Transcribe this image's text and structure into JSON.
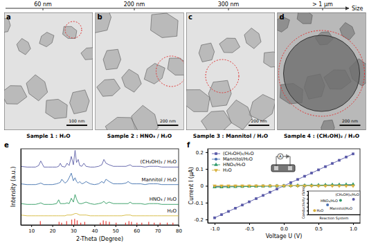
{
  "size_scale": {
    "labels": [
      "60 nm",
      "200 nm",
      "300 nm",
      "> 1 μm"
    ],
    "title": "Size"
  },
  "images": [
    {
      "letter": "a",
      "caption": "Sample 1 : H₂O",
      "scale_bar": "100 nm"
    },
    {
      "letter": "b",
      "caption": "Sample 2 : HNO₃ / H₂O",
      "scale_bar": "200 nm"
    },
    {
      "letter": "c",
      "caption": "Sample 3 : Mannitol / H₂O",
      "scale_bar": "200 nm"
    },
    {
      "letter": "d",
      "caption": "Sample 4 : (CH₂OH)₂ / H₂O",
      "scale_bar": "200 nm"
    }
  ],
  "chart_data": [
    {
      "type": "line",
      "panel_label": "e",
      "x_label": "2-Theta (Degree)",
      "y_label": "Intensity (a.u.)",
      "xlim": [
        5,
        80
      ],
      "xticks": [
        10,
        20,
        30,
        40,
        50,
        60,
        70,
        80
      ],
      "ylim": [
        0,
        100
      ],
      "tick_labels": "x",
      "x": [
        5,
        8,
        10,
        12,
        13.5,
        14.5,
        16,
        18,
        20,
        22,
        23,
        23.8,
        24.5,
        26,
        27,
        28,
        29,
        30,
        30.8,
        31.5,
        32.3,
        33,
        34,
        35,
        36,
        38,
        40,
        42,
        43.5,
        44.5,
        45.5,
        47,
        49,
        51,
        53,
        55,
        56,
        57,
        58,
        60,
        62,
        64,
        66,
        68,
        70,
        72,
        75,
        78,
        80
      ],
      "series": [
        {
          "name": "(CH₂OH)₂ / H₂O",
          "color": "#5b5ea6",
          "values": [
            77,
            76,
            76,
            76,
            78,
            84,
            76,
            76,
            76,
            76,
            77,
            81,
            77,
            76,
            81,
            78,
            90,
            79,
            98,
            82,
            86,
            78,
            77,
            81,
            77,
            76,
            76,
            77,
            79,
            86,
            81,
            79,
            77,
            77,
            77,
            77,
            78,
            79,
            77,
            77,
            77,
            76,
            77,
            77,
            77,
            76,
            76,
            76,
            76
          ]
        },
        {
          "name": "Mannitol / H₂O",
          "color": "#3f6fae",
          "values": [
            54,
            53,
            53,
            53,
            54,
            55,
            53,
            53,
            53,
            54,
            55,
            56,
            60,
            55,
            57,
            62,
            68,
            58,
            62,
            57,
            55,
            57,
            54,
            55,
            57,
            54,
            53,
            54,
            57,
            55,
            60,
            57,
            54,
            54,
            54,
            55,
            57,
            55,
            54,
            54,
            54,
            53,
            54,
            54,
            54,
            53,
            53,
            53,
            53
          ]
        },
        {
          "name": "HNO₃ / H₂O",
          "color": "#2e9a5f",
          "values": [
            28,
            27,
            27,
            27,
            28,
            29,
            27,
            27,
            27,
            28,
            33,
            28,
            28,
            28,
            29,
            28,
            35,
            30,
            40,
            34,
            29,
            28,
            28,
            29,
            30,
            28,
            27,
            28,
            29,
            31,
            28,
            30,
            28,
            28,
            28,
            28,
            28,
            30,
            28,
            28,
            28,
            27,
            28,
            28,
            28,
            27,
            27,
            27,
            27
          ]
        },
        {
          "name": "H₂O",
          "color": "#d4b83a",
          "values": [
            13,
            12,
            12,
            12,
            12,
            12,
            12,
            12,
            12,
            12,
            12,
            12,
            12,
            12,
            13,
            13,
            13,
            14,
            15,
            15,
            14,
            13,
            13,
            13,
            13,
            12,
            12,
            12,
            12,
            12,
            12,
            12,
            12,
            12,
            12,
            13,
            13,
            13,
            12,
            12,
            12,
            12,
            12,
            12,
            12,
            12,
            12,
            12,
            12
          ]
        },
        {
          "type": "stem",
          "color": "#e8403a",
          "x": [
            14.3,
            23.2,
            24.4,
            26.8,
            29.2,
            30.6,
            31.8,
            33.5,
            35.4,
            42.8,
            44.2,
            45.5,
            47.1,
            50.3,
            54.8,
            56.4,
            57.6,
            60.2,
            62.5,
            65.8,
            68.4,
            71.2,
            74.6,
            77.3
          ],
          "values": [
            5,
            4,
            3,
            5,
            7,
            8,
            6,
            3,
            4,
            3,
            6,
            5,
            4,
            3,
            3,
            5,
            4,
            3,
            3,
            4,
            3,
            3,
            3,
            3
          ]
        }
      ]
    },
    {
      "type": "line",
      "panel_label": "f",
      "x_label": "Voltage U (V)",
      "y_label": "Current I (μA)",
      "xlim": [
        -1.1,
        1.1
      ],
      "xticks": [
        {
          "value": -1,
          "label": "-1.0"
        },
        -0.5,
        {
          "value": 0,
          "label": "0.0"
        },
        0.5,
        {
          "value": 1,
          "label": "1.0"
        }
      ],
      "ylim": [
        -0.22,
        0.22
      ],
      "yticks": [
        -0.2,
        -0.1,
        0,
        0.1,
        0.2
      ],
      "legend": "top-left",
      "annotations": [
        "A"
      ],
      "x": [
        -1,
        -0.9,
        -0.8,
        -0.7,
        -0.6,
        -0.5,
        -0.4,
        -0.3,
        -0.2,
        -0.1,
        0,
        0.1,
        0.2,
        0.3,
        0.4,
        0.5,
        0.6,
        0.7,
        0.8,
        0.9,
        1
      ],
      "series": [
        {
          "name": "(CH₂OH)₂/H₂O",
          "color": "#5a5aa8",
          "marker": "square",
          "line_style": "solid",
          "values": [
            -0.19,
            -0.171,
            -0.152,
            -0.133,
            -0.114,
            -0.095,
            -0.076,
            -0.057,
            -0.038,
            -0.019,
            0,
            0.019,
            0.038,
            0.057,
            0.076,
            0.095,
            0.114,
            0.133,
            0.152,
            0.171,
            0.19
          ]
        },
        {
          "name": "Mannitol/H₂O",
          "color": "#4a6fb0",
          "marker": "circle",
          "line_style": "solid",
          "values": [
            -0.004,
            -0.0036,
            -0.0032,
            -0.0028,
            -0.0024,
            -0.002,
            -0.0016,
            -0.0012,
            -0.0008,
            -0.0004,
            0,
            0.0004,
            0.0008,
            0.0012,
            0.0016,
            0.002,
            0.0024,
            0.0028,
            0.0032,
            0.0036,
            0.004
          ]
        },
        {
          "name": "HNO₃/H₂O",
          "color": "#2e9a6a",
          "marker": "triangle",
          "line_style": "solid",
          "values": [
            -0.008,
            -0.0072,
            -0.0064,
            -0.0056,
            -0.0048,
            -0.004,
            -0.0032,
            -0.0024,
            -0.0016,
            -0.0008,
            0,
            0.0008,
            0.0016,
            0.0024,
            0.0032,
            0.004,
            0.0048,
            0.0056,
            0.0064,
            0.0072,
            0.008
          ]
        },
        {
          "name": "H₂O",
          "color": "#d7b13c",
          "marker": "triangle-down",
          "line_style": "solid",
          "values": [
            0,
            0,
            0,
            0,
            0,
            0,
            0,
            0,
            0,
            0,
            0,
            0,
            0,
            0,
            0,
            0,
            0,
            0,
            0,
            0,
            0
          ]
        }
      ]
    },
    {
      "type": "scatter",
      "x_label": "Reaction System",
      "y_label": "Conductivity (S/m)",
      "categories": [
        "H₂O",
        "Mannitol/H₂O",
        "HNO₃/H₂O",
        "(CH₂OH)₂/H₂O"
      ],
      "values": [
        1e-06,
        3e-05,
        0.0004,
        0.0008
      ],
      "colors": [
        "#d7b13c",
        "#4a6fb0",
        "#2e9a6a",
        "#5a5aa8"
      ],
      "log": "y",
      "ylim": [
        1e-07,
        0.1
      ],
      "yticks": [
        1e-07,
        1e-06,
        1e-05,
        0.0001,
        0.001,
        0.01,
        0.1
      ],
      "tick_labels": false
    }
  ]
}
